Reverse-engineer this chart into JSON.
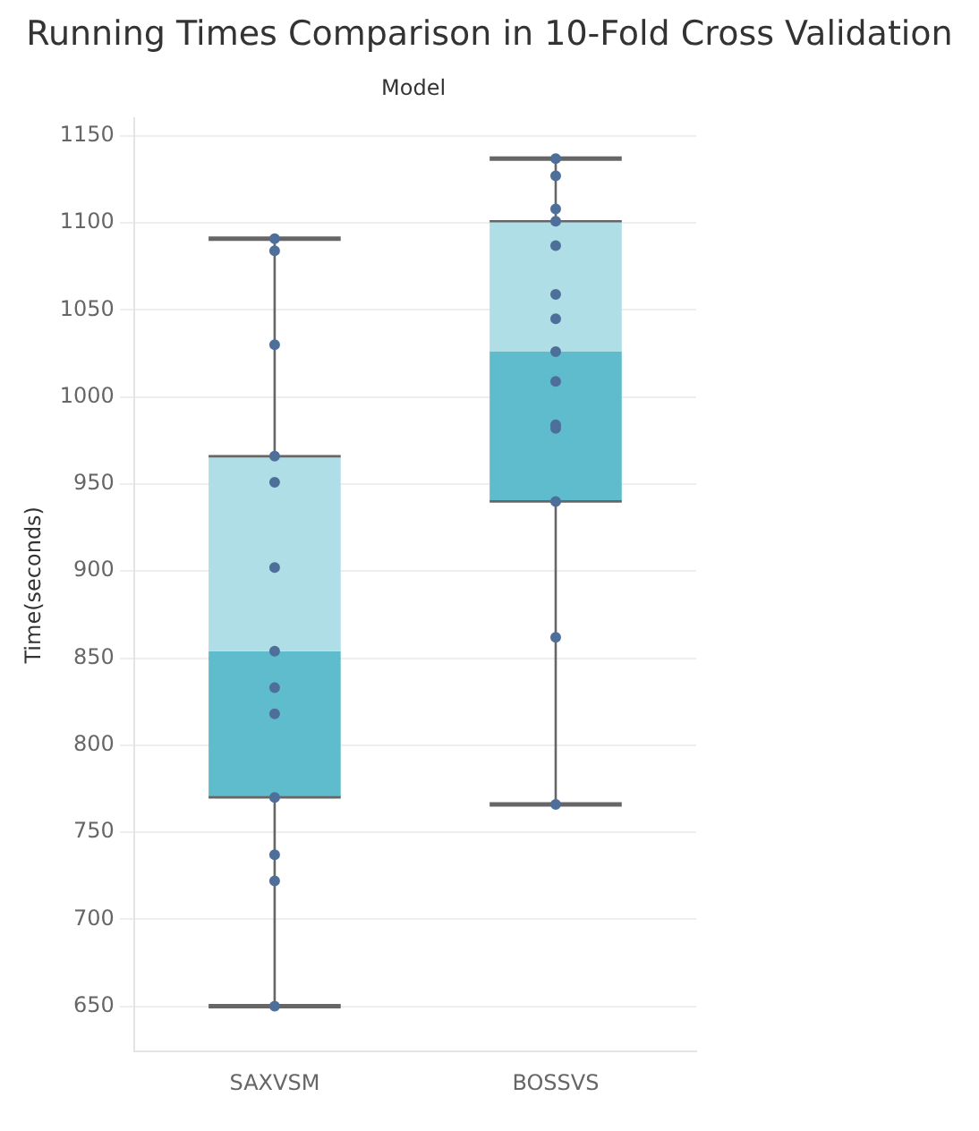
{
  "chart_data": {
    "type": "box",
    "title": "Running Times Comparison in 10-Fold Cross Validation",
    "xlabel": "Model",
    "ylabel": "Time(seconds)",
    "categories": [
      "SAXVSM",
      "BOSSVS"
    ],
    "series": [
      {
        "color": "#5fbccd",
        "boxes": [
          {
            "low": 650,
            "q1": 770,
            "median": 854,
            "q3": 966,
            "high": 1091
          },
          {
            "low": 766,
            "q1": 940,
            "median": 1026,
            "q3": 1101,
            "high": 1137
          }
        ]
      },
      {
        "type": "scatter",
        "color": "#4d6f9a",
        "x": [
          "SAXVSM",
          "SAXVSM",
          "SAXVSM",
          "SAXVSM",
          "SAXVSM",
          "SAXVSM",
          "SAXVSM",
          "SAXVSM",
          "SAXVSM",
          "SAXVSM",
          "SAXVSM",
          "SAXVSM",
          "SAXVSM"
        ],
        "values": [
          1091,
          1084,
          1030,
          966,
          951,
          902,
          854,
          833,
          818,
          770,
          737,
          722,
          650
        ]
      },
      {
        "type": "scatter",
        "color": "#4d6f9a",
        "x": [
          "BOSSVS",
          "BOSSVS",
          "BOSSVS",
          "BOSSVS",
          "BOSSVS",
          "BOSSVS",
          "BOSSVS",
          "BOSSVS",
          "BOSSVS",
          "BOSSVS",
          "BOSSVS",
          "BOSSVS",
          "BOSSVS",
          "BOSSVS"
        ],
        "values": [
          1137,
          1127,
          1108,
          1101,
          1087,
          1059,
          1045,
          1026,
          1009,
          984,
          982,
          940,
          862,
          766
        ]
      }
    ],
    "ylim": [
      624,
      1160
    ],
    "yticks": [
      650,
      700,
      750,
      800,
      850,
      900,
      950,
      1000,
      1050,
      1100,
      1150
    ],
    "grid": "y",
    "legend": false,
    "marker": "circle"
  }
}
